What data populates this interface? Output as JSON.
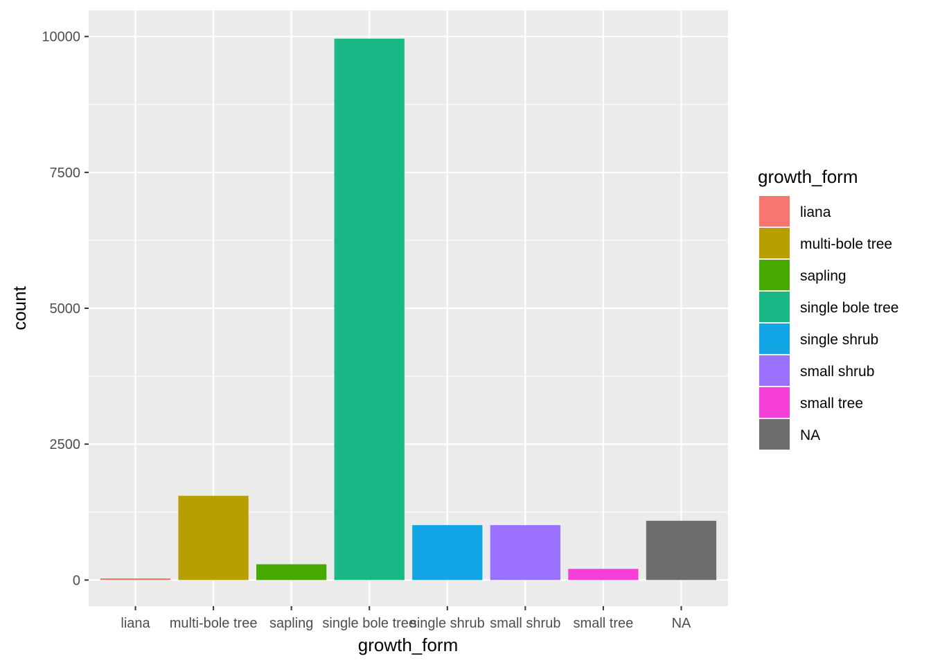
{
  "chart_data": {
    "type": "bar",
    "xlabel": "growth_form",
    "ylabel": "count",
    "categories": [
      "liana",
      "multi-bole tree",
      "sapling",
      "single bole tree",
      "single shrub",
      "small shrub",
      "small tree",
      "NA"
    ],
    "values": [
      30,
      1550,
      290,
      9960,
      1010,
      1010,
      205,
      1090
    ],
    "colors": [
      "#F8766D",
      "#B79F00",
      "#47A800",
      "#1AB886",
      "#13A6E6",
      "#9A72FF",
      "#F63FD6",
      "#6E6E6E"
    ],
    "yticks": [
      0,
      2500,
      5000,
      7500,
      10000
    ],
    "ylim": [
      -480,
      10480
    ],
    "grid": true,
    "legend": {
      "title": "growth_form",
      "position": "right",
      "entries": [
        "liana",
        "multi-bole tree",
        "sapling",
        "single bole tree",
        "single shrub",
        "small shrub",
        "small tree",
        "NA"
      ]
    }
  }
}
